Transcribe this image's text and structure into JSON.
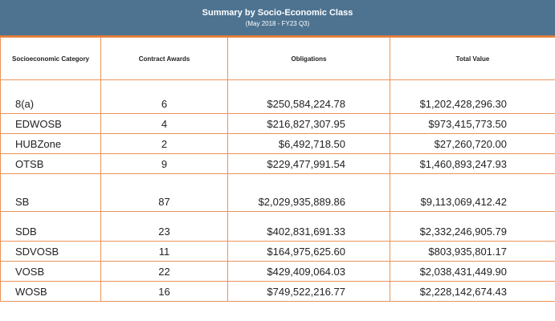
{
  "header": {
    "title": "Summary by Socio-Economic Class",
    "subtitle": "(May 2018 - FY23 Q3)"
  },
  "table": {
    "columns": [
      "Socioeconomic Category",
      "Contract Awards",
      "Obligations",
      "Total Value"
    ],
    "rows": [
      {
        "category": "8(a)",
        "awards": "6",
        "obligations": "$250,584,224.78",
        "total": "$1,202,428,296.30"
      },
      {
        "category": "EDWOSB",
        "awards": "4",
        "obligations": "$216,827,307.95",
        "total": "$973,415,773.50"
      },
      {
        "category": "HUBZone",
        "awards": "2",
        "obligations": "$6,492,718.50",
        "total": "$27,260,720.00"
      },
      {
        "category": "OTSB",
        "awards": "9",
        "obligations": "$229,477,991.54",
        "total": "$1,460,893,247.93"
      },
      {
        "category": "SB",
        "awards": "87",
        "obligations": "$2,029,935,889.86",
        "total": "$9,113,069,412.42"
      },
      {
        "category": "SDB",
        "awards": "23",
        "obligations": "$402,831,691.33",
        "total": "$2,332,246,905.79"
      },
      {
        "category": "SDVOSB",
        "awards": "11",
        "obligations": "$164,975,625.60",
        "total": "$803,935,801.17"
      },
      {
        "category": "VOSB",
        "awards": "22",
        "obligations": "$429,409,064.03",
        "total": "$2,038,431,449.90"
      },
      {
        "category": "WOSB",
        "awards": "16",
        "obligations": "$749,522,216.77",
        "total": "$2,228,142,674.43"
      }
    ]
  }
}
